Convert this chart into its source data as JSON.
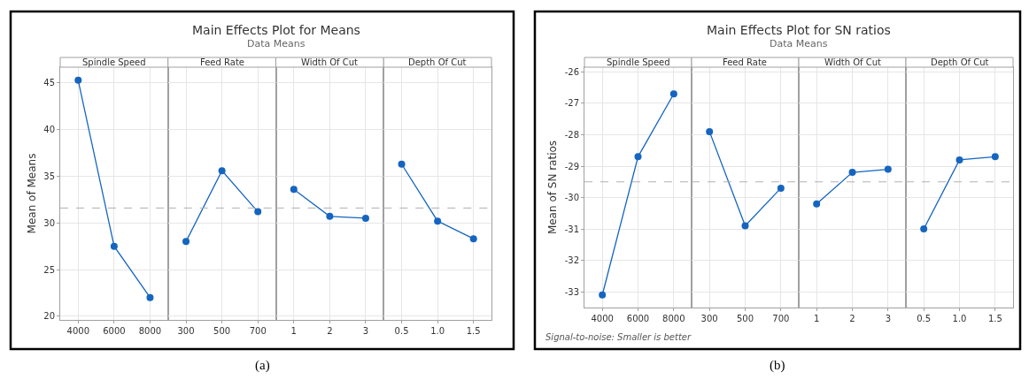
{
  "chart_data": [
    {
      "type": "line",
      "title": "Spindle Speed",
      "ylabel": "Mean of Means",
      "annotations": [
        "Main Effects Plot for Means",
        "Data Means",
        "(a)"
      ],
      "categories": [
        "4000",
        "6000",
        "8000"
      ],
      "values": [
        45.3,
        27.5,
        22.0
      ],
      "color": "#1565c0",
      "marker": "circle",
      "ylim": [
        19.6,
        46.7
      ],
      "yticks": [
        20,
        25,
        30,
        35,
        40,
        45
      ],
      "grid": true,
      "ref_lines": [
        {
          "axis": "y",
          "value": 31.6,
          "color": "#b0b0b0",
          "line_style": "dashed"
        }
      ]
    },
    {
      "type": "line",
      "title": "Feed Rate",
      "categories": [
        "300",
        "500",
        "700"
      ],
      "values": [
        28.0,
        35.6,
        31.2
      ],
      "color": "#1565c0",
      "marker": "circle",
      "ylim": [
        19.6,
        46.7
      ],
      "yticks": [
        20,
        25,
        30,
        35,
        40,
        45
      ],
      "grid": true,
      "tick_labels": "x",
      "ref_lines": [
        {
          "axis": "y",
          "value": 31.6,
          "color": "#b0b0b0",
          "line_style": "dashed"
        }
      ]
    },
    {
      "type": "line",
      "title": "Width Of Cut",
      "categories": [
        "1",
        "2",
        "3"
      ],
      "values": [
        33.6,
        30.7,
        30.5
      ],
      "color": "#1565c0",
      "marker": "circle",
      "ylim": [
        19.6,
        46.7
      ],
      "yticks": [
        20,
        25,
        30,
        35,
        40,
        45
      ],
      "grid": true,
      "tick_labels": "x",
      "ref_lines": [
        {
          "axis": "y",
          "value": 31.6,
          "color": "#b0b0b0",
          "line_style": "dashed"
        }
      ]
    },
    {
      "type": "line",
      "title": "Depth Of Cut",
      "categories": [
        "0.5",
        "1.0",
        "1.5"
      ],
      "values": [
        36.3,
        30.2,
        28.3
      ],
      "color": "#1565c0",
      "marker": "circle",
      "ylim": [
        19.6,
        46.7
      ],
      "yticks": [
        20,
        25,
        30,
        35,
        40,
        45
      ],
      "grid": true,
      "tick_labels": "x",
      "ref_lines": [
        {
          "axis": "y",
          "value": 31.6,
          "color": "#b0b0b0",
          "line_style": "dashed"
        }
      ]
    },
    {
      "type": "line",
      "title": "Spindle Speed",
      "ylabel": "Mean of SN ratios",
      "annotations": [
        "Main Effects Plot for SN ratios",
        "Data Means",
        "Signal-to-noise: Smaller is better",
        "(b)"
      ],
      "categories": [
        "4000",
        "6000",
        "8000"
      ],
      "values": [
        -33.1,
        -28.7,
        -26.7
      ],
      "color": "#1565c0",
      "marker": "circle",
      "ylim": [
        -33.5,
        -25.85
      ],
      "yticks": [
        -33,
        -32,
        -31,
        -30,
        -29,
        -28,
        -27,
        -26
      ],
      "grid": true,
      "ref_lines": [
        {
          "axis": "y",
          "value": -29.5,
          "color": "#b0b0b0",
          "line_style": "dashed"
        }
      ]
    },
    {
      "type": "line",
      "title": "Feed Rate",
      "categories": [
        "300",
        "500",
        "700"
      ],
      "values": [
        -27.9,
        -30.9,
        -29.7
      ],
      "color": "#1565c0",
      "marker": "circle",
      "ylim": [
        -33.5,
        -25.85
      ],
      "yticks": [
        -33,
        -32,
        -31,
        -30,
        -29,
        -28,
        -27,
        -26
      ],
      "grid": true,
      "tick_labels": "x",
      "ref_lines": [
        {
          "axis": "y",
          "value": -29.5,
          "color": "#b0b0b0",
          "line_style": "dashed"
        }
      ]
    },
    {
      "type": "line",
      "title": "Width Of Cut",
      "categories": [
        "1",
        "2",
        "3"
      ],
      "values": [
        -30.2,
        -29.2,
        -29.1
      ],
      "color": "#1565c0",
      "marker": "circle",
      "ylim": [
        -33.5,
        -25.85
      ],
      "yticks": [
        -33,
        -32,
        -31,
        -30,
        -29,
        -28,
        -27,
        -26
      ],
      "grid": true,
      "tick_labels": "x",
      "ref_lines": [
        {
          "axis": "y",
          "value": -29.5,
          "color": "#b0b0b0",
          "line_style": "dashed"
        }
      ]
    },
    {
      "type": "line",
      "title": "Depth Of Cut",
      "categories": [
        "0.5",
        "1.0",
        "1.5"
      ],
      "values": [
        -31.0,
        -28.8,
        -28.7
      ],
      "color": "#1565c0",
      "marker": "circle",
      "ylim": [
        -33.5,
        -25.85
      ],
      "yticks": [
        -33,
        -32,
        -31,
        -30,
        -29,
        -28,
        -27,
        -26
      ],
      "grid": true,
      "tick_labels": "x",
      "ref_lines": [
        {
          "axis": "y",
          "value": -29.5,
          "color": "#b0b0b0",
          "line_style": "dashed"
        }
      ]
    }
  ]
}
